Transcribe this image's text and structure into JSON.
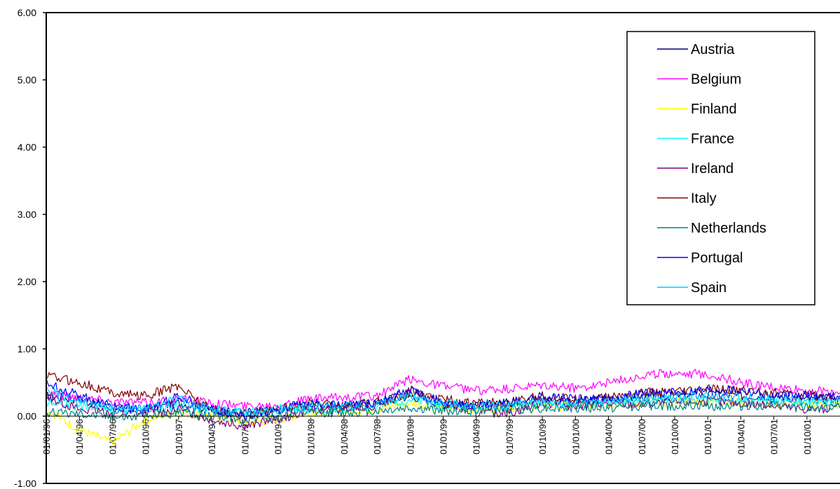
{
  "chart_data": {
    "type": "line",
    "title": "",
    "xlabel": "",
    "ylabel": "",
    "ylim": [
      -1,
      6
    ],
    "yticks": [
      "6.00",
      "5.00",
      "4.00",
      "3.00",
      "2.00",
      "1.00",
      "0.00",
      "-1.00"
    ],
    "x_tick_labels": [
      "01/01/96",
      "01/04/96",
      "01/07/96",
      "01/10/96",
      "01/01/97",
      "01/04/97",
      "01/07/97",
      "01/10/97",
      "01/01/98",
      "01/04/98",
      "01/07/98",
      "01/10/98",
      "01/01/99",
      "01/04/99",
      "01/07/99",
      "01/10/99",
      "01/01/00",
      "01/04/00",
      "01/07/00",
      "01/10/00",
      "01/01/01",
      "01/04/01",
      "01/07/01",
      "01/10/01"
    ],
    "x": [
      "01/01/96",
      "01/04/96",
      "01/07/96",
      "01/10/96",
      "01/01/97",
      "01/04/97",
      "01/07/97",
      "01/10/97",
      "01/01/98",
      "01/04/98",
      "01/07/98",
      "01/10/98",
      "01/01/99",
      "01/04/99",
      "01/07/99",
      "01/10/99",
      "01/01/00",
      "01/04/00",
      "01/07/00",
      "01/10/00",
      "01/01/01",
      "01/04/01",
      "01/07/01",
      "01/10/01",
      "31/12/01"
    ],
    "grid": false,
    "legend_position": "top-right",
    "series": [
      {
        "name": "Austria",
        "color": "#000080",
        "values": [
          0.3,
          0.25,
          0.12,
          0.1,
          0.2,
          0.1,
          0.05,
          0.1,
          0.15,
          0.15,
          0.2,
          0.3,
          0.18,
          0.15,
          0.2,
          0.25,
          0.22,
          0.25,
          0.28,
          0.3,
          0.32,
          0.3,
          0.3,
          0.25,
          0.25
        ]
      },
      {
        "name": "Belgium",
        "color": "#FF00FF",
        "values": [
          0.35,
          0.28,
          0.22,
          0.2,
          0.25,
          0.2,
          0.15,
          0.18,
          0.25,
          0.28,
          0.3,
          0.55,
          0.45,
          0.38,
          0.4,
          0.45,
          0.42,
          0.5,
          0.6,
          0.65,
          0.62,
          0.5,
          0.42,
          0.38,
          0.35
        ]
      },
      {
        "name": "Finland",
        "color": "#FFFF00",
        "values": [
          0.1,
          -0.2,
          -0.4,
          -0.05,
          0.05,
          0.0,
          -0.1,
          -0.05,
          0.05,
          0.08,
          0.1,
          0.2,
          0.12,
          0.1,
          0.12,
          0.15,
          0.15,
          0.18,
          0.2,
          0.22,
          0.22,
          0.2,
          0.18,
          0.18,
          0.17
        ]
      },
      {
        "name": "France",
        "color": "#00FFFF",
        "values": [
          0.2,
          0.15,
          0.1,
          0.08,
          0.15,
          0.1,
          0.05,
          0.08,
          0.1,
          0.1,
          0.15,
          0.25,
          0.15,
          0.12,
          0.15,
          0.18,
          0.18,
          0.2,
          0.22,
          0.25,
          0.25,
          0.22,
          0.22,
          0.2,
          0.2
        ]
      },
      {
        "name": "Ireland",
        "color": "#800080",
        "values": [
          0.3,
          0.1,
          0.05,
          0.05,
          0.1,
          -0.05,
          -0.15,
          -0.05,
          0.1,
          0.1,
          0.15,
          0.4,
          0.2,
          0.05,
          0.05,
          0.2,
          0.15,
          0.18,
          0.18,
          0.2,
          0.22,
          0.2,
          0.15,
          0.1,
          0.12
        ]
      },
      {
        "name": "Italy",
        "color": "#800000",
        "values": [
          0.6,
          0.5,
          0.35,
          0.3,
          0.45,
          0.1,
          0.0,
          0.1,
          0.2,
          0.15,
          0.2,
          0.35,
          0.25,
          0.2,
          0.2,
          0.3,
          0.25,
          0.28,
          0.35,
          0.35,
          0.4,
          0.38,
          0.35,
          0.3,
          0.3
        ]
      },
      {
        "name": "Netherlands",
        "color": "#008080",
        "values": [
          0.05,
          0.05,
          0.0,
          0.0,
          0.05,
          0.0,
          -0.05,
          0.0,
          0.05,
          0.05,
          0.08,
          0.12,
          0.08,
          0.08,
          0.1,
          0.12,
          0.12,
          0.12,
          0.15,
          0.15,
          0.15,
          0.15,
          0.15,
          0.12,
          0.12
        ]
      },
      {
        "name": "Portugal",
        "color": "#0000FF",
        "values": [
          0.5,
          0.3,
          0.15,
          0.1,
          0.3,
          0.1,
          0.0,
          0.1,
          0.2,
          0.15,
          0.2,
          0.4,
          0.2,
          0.15,
          0.2,
          0.3,
          0.25,
          0.25,
          0.35,
          0.35,
          0.4,
          0.4,
          0.3,
          0.3,
          0.3
        ]
      },
      {
        "name": "Spain",
        "color": "#00CCFF",
        "values": [
          0.4,
          0.2,
          0.1,
          0.1,
          0.25,
          0.1,
          0.05,
          0.1,
          0.15,
          0.15,
          0.18,
          0.3,
          0.2,
          0.15,
          0.18,
          0.2,
          0.18,
          0.22,
          0.25,
          0.28,
          0.3,
          0.28,
          0.25,
          0.22,
          0.22
        ]
      }
    ]
  }
}
